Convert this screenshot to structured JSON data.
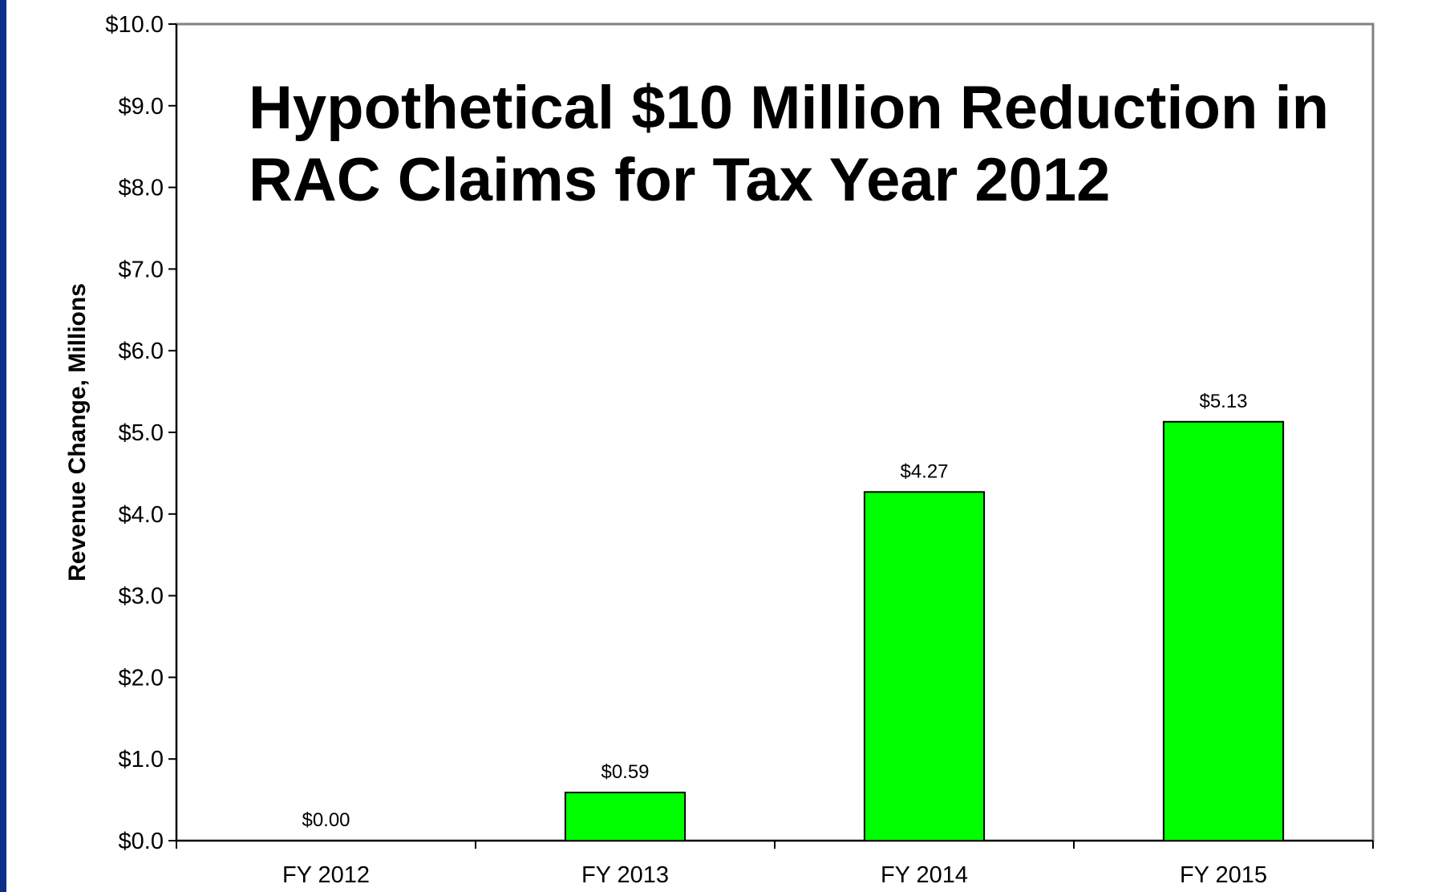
{
  "chart_data": {
    "type": "bar",
    "title_lines": [
      "Hypothetical $10 Million Reduction in",
      "RAC Claims for Tax Year 2012"
    ],
    "xlabel": "",
    "ylabel": "Revenue Change, Millions",
    "categories": [
      "FY 2012",
      "FY 2013",
      "FY 2014",
      "FY 2015"
    ],
    "values": [
      0.0,
      0.59,
      4.27,
      5.13
    ],
    "value_labels": [
      "$0.00",
      "$0.59",
      "$4.27",
      "$5.13"
    ],
    "ylim": [
      0,
      10
    ],
    "yticks": [
      0,
      1,
      2,
      3,
      4,
      5,
      6,
      7,
      8,
      9,
      10
    ],
    "ytick_labels": [
      "$0.0",
      "$1.0",
      "$2.0",
      "$3.0",
      "$4.0",
      "$5.0",
      "$6.0",
      "$7.0",
      "$8.0",
      "$9.0",
      "$10.0"
    ],
    "bar_color": "#00ff00",
    "grid": false,
    "legend": "none"
  },
  "colors": {
    "frame": "#0b2f8a",
    "background": "#ffffff"
  }
}
